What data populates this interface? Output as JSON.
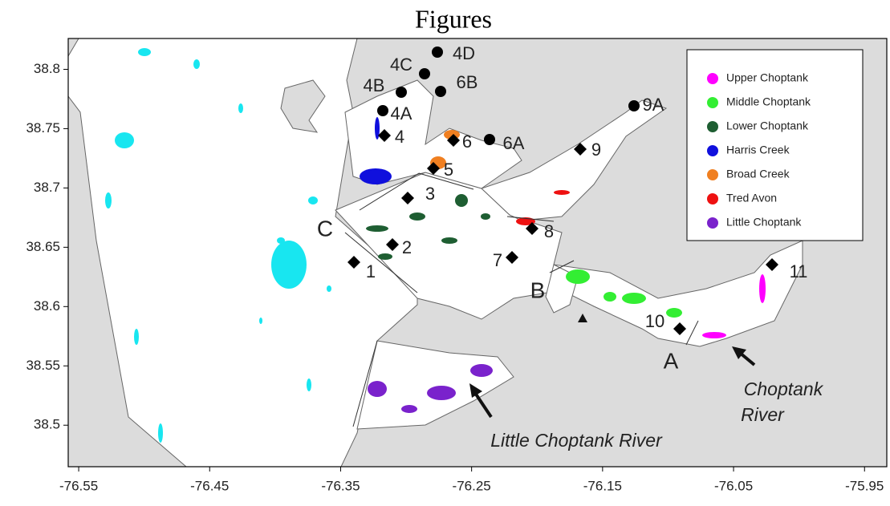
{
  "title": "Figures",
  "map": {
    "xlim": [
      -76.558,
      -75.933
    ],
    "ylim": [
      38.465,
      38.826
    ],
    "xticks": [
      -76.55,
      -76.45,
      -76.35,
      -76.25,
      -76.15,
      -76.05,
      -75.95
    ],
    "yticks": [
      38.5,
      38.55,
      38.6,
      38.65,
      38.7,
      38.75,
      38.8
    ]
  },
  "legend": [
    {
      "name": "Upper Choptank",
      "color": "#ff00ff"
    },
    {
      "name": "Middle Choptank",
      "color": "#33ee33"
    },
    {
      "name": "Lower Choptank",
      "color": "#1e5e32"
    },
    {
      "name": "Harris Creek",
      "color": "#1010dd"
    },
    {
      "name": "Broad Creek",
      "color": "#f07f20"
    },
    {
      "name": "Tred Avon",
      "color": "#ee1111"
    },
    {
      "name": "Little Choptank",
      "color": "#7a22cc"
    }
  ],
  "stations": [
    "1",
    "2",
    "3",
    "4",
    "4A",
    "4B",
    "4C",
    "4D",
    "5",
    "6",
    "6A",
    "6B",
    "7",
    "8",
    "9",
    "9A",
    "10",
    "11"
  ],
  "regions": [
    "A",
    "B",
    "C"
  ],
  "rivers": {
    "little_choptank": "Little Choptank River",
    "choptank": [
      "Choptank",
      "River"
    ]
  }
}
